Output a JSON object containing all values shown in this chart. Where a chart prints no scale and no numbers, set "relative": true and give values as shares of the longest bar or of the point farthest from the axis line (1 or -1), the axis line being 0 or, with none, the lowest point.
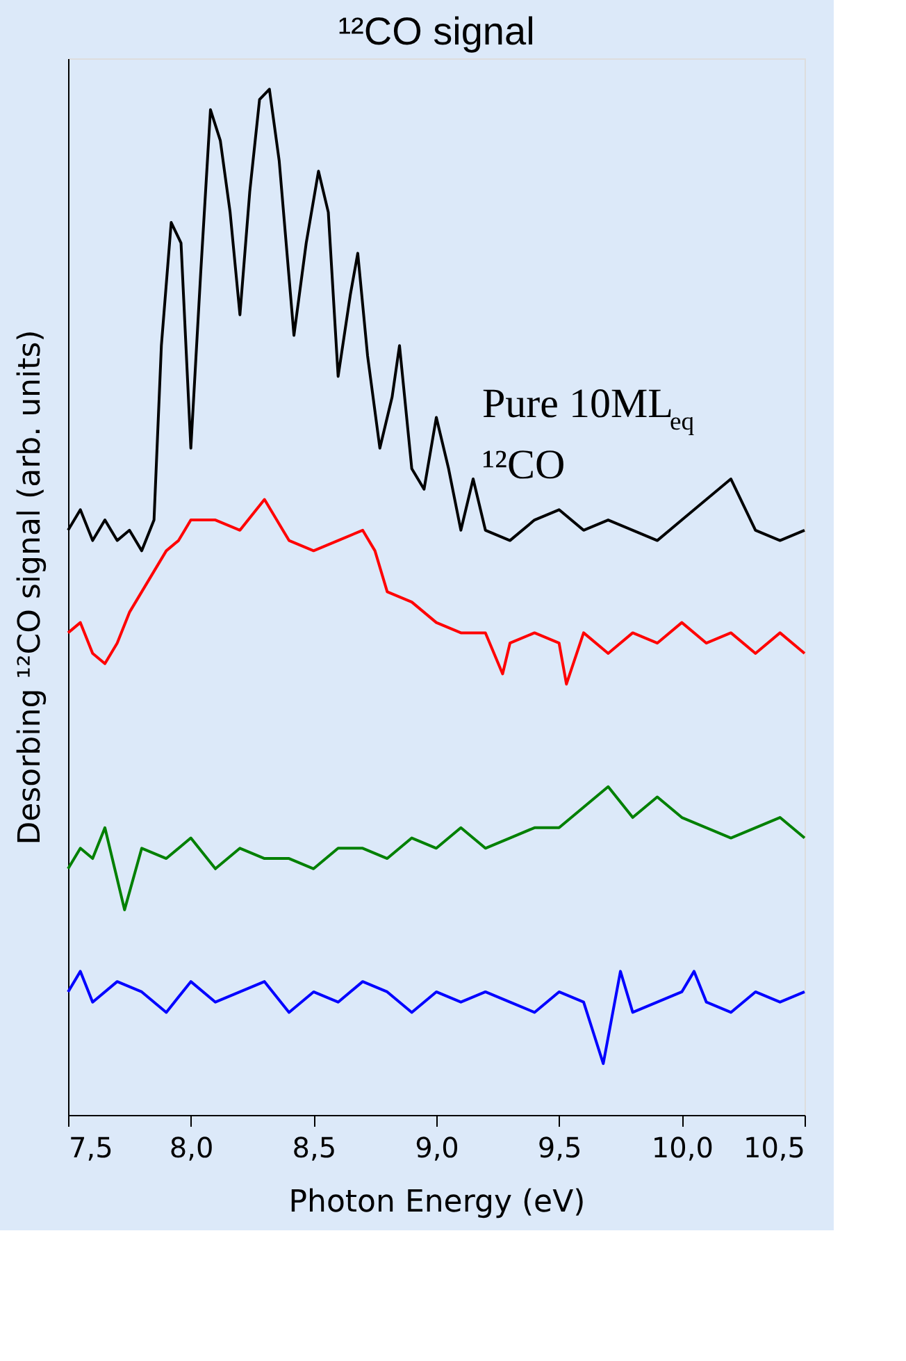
{
  "chart_data": {
    "type": "line",
    "title": "¹²CO signal",
    "xlabel": "Photon Energy (eV)",
    "ylabel": "Desorbing ¹²CO signal (arb. units)",
    "relative": true,
    "tick_labels": "x",
    "grid": false,
    "legend": false,
    "marker": "none",
    "line_style": "solid",
    "annotations": [
      "Pure 10ML$_{eq}$",
      "¹²CO"
    ],
    "xlim": [
      7.5,
      10.5
    ],
    "xticks": [
      {
        "value": 7.5,
        "label": "7,5"
      },
      {
        "value": 8.0,
        "label": "8,0"
      },
      {
        "value": 8.5,
        "label": "8,5"
      },
      {
        "value": 9.0,
        "label": "9,0"
      },
      {
        "value": 9.5,
        "label": "9,5"
      },
      {
        "value": 10.0,
        "label": "10,0"
      },
      {
        "value": 10.5,
        "label": "10,5"
      }
    ],
    "series": [
      {
        "color": "#000000",
        "x": [
          7.5,
          7.55,
          7.6,
          7.65,
          7.7,
          7.75,
          7.8,
          7.85,
          7.88,
          7.92,
          7.96,
          8.0,
          8.04,
          8.08,
          8.12,
          8.16,
          8.2,
          8.24,
          8.28,
          8.32,
          8.36,
          8.42,
          8.47,
          8.52,
          8.56,
          8.6,
          8.65,
          8.68,
          8.72,
          8.77,
          8.82,
          8.85,
          8.9,
          8.95,
          9.0,
          9.05,
          9.1,
          9.15,
          9.2,
          9.3,
          9.4,
          9.5,
          9.6,
          9.7,
          9.8,
          9.9,
          10.0,
          10.1,
          10.2,
          10.3,
          10.4,
          10.5
        ],
        "values": [
          0.57,
          0.59,
          0.56,
          0.58,
          0.56,
          0.57,
          0.55,
          0.58,
          0.75,
          0.87,
          0.85,
          0.65,
          0.82,
          0.98,
          0.95,
          0.88,
          0.78,
          0.9,
          0.99,
          1.0,
          0.93,
          0.76,
          0.85,
          0.92,
          0.88,
          0.72,
          0.8,
          0.84,
          0.74,
          0.65,
          0.7,
          0.75,
          0.63,
          0.61,
          0.68,
          0.63,
          0.57,
          0.62,
          0.57,
          0.56,
          0.58,
          0.59,
          0.57,
          0.58,
          0.57,
          0.56,
          0.58,
          0.6,
          0.62,
          0.57,
          0.56,
          0.57
        ]
      },
      {
        "color": "#ff0000",
        "x": [
          7.5,
          7.55,
          7.6,
          7.65,
          7.7,
          7.75,
          7.8,
          7.85,
          7.9,
          7.95,
          8.0,
          8.1,
          8.2,
          8.3,
          8.35,
          8.4,
          8.5,
          8.6,
          8.7,
          8.75,
          8.8,
          8.9,
          9.0,
          9.1,
          9.2,
          9.27,
          9.3,
          9.4,
          9.5,
          9.53,
          9.6,
          9.7,
          9.8,
          9.9,
          10.0,
          10.1,
          10.2,
          10.3,
          10.4,
          10.5
        ],
        "values": [
          0.47,
          0.48,
          0.45,
          0.44,
          0.46,
          0.49,
          0.51,
          0.53,
          0.55,
          0.56,
          0.58,
          0.58,
          0.57,
          0.6,
          0.58,
          0.56,
          0.55,
          0.56,
          0.57,
          0.55,
          0.51,
          0.5,
          0.48,
          0.47,
          0.47,
          0.43,
          0.46,
          0.47,
          0.46,
          0.42,
          0.47,
          0.45,
          0.47,
          0.46,
          0.48,
          0.46,
          0.47,
          0.45,
          0.47,
          0.45
        ]
      },
      {
        "color": "#008000",
        "x": [
          7.5,
          7.55,
          7.6,
          7.65,
          7.7,
          7.73,
          7.8,
          7.9,
          8.0,
          8.1,
          8.2,
          8.3,
          8.4,
          8.5,
          8.6,
          8.7,
          8.8,
          8.9,
          9.0,
          9.1,
          9.2,
          9.3,
          9.4,
          9.5,
          9.6,
          9.7,
          9.8,
          9.9,
          10.0,
          10.1,
          10.2,
          10.3,
          10.4,
          10.5
        ],
        "values": [
          0.24,
          0.26,
          0.25,
          0.28,
          0.23,
          0.2,
          0.26,
          0.25,
          0.27,
          0.24,
          0.26,
          0.25,
          0.25,
          0.24,
          0.26,
          0.26,
          0.25,
          0.27,
          0.26,
          0.28,
          0.26,
          0.27,
          0.28,
          0.28,
          0.3,
          0.32,
          0.29,
          0.31,
          0.29,
          0.28,
          0.27,
          0.28,
          0.29,
          0.27
        ]
      },
      {
        "color": "#0000ff",
        "x": [
          7.5,
          7.55,
          7.6,
          7.7,
          7.8,
          7.9,
          8.0,
          8.1,
          8.2,
          8.3,
          8.4,
          8.5,
          8.6,
          8.7,
          8.8,
          8.9,
          9.0,
          9.1,
          9.2,
          9.3,
          9.4,
          9.5,
          9.6,
          9.68,
          9.75,
          9.8,
          9.9,
          10.0,
          10.05,
          10.1,
          10.2,
          10.3,
          10.4,
          10.5
        ],
        "values": [
          0.12,
          0.14,
          0.11,
          0.13,
          0.12,
          0.1,
          0.13,
          0.11,
          0.12,
          0.13,
          0.1,
          0.12,
          0.11,
          0.13,
          0.12,
          0.1,
          0.12,
          0.11,
          0.12,
          0.11,
          0.1,
          0.12,
          0.11,
          0.05,
          0.14,
          0.1,
          0.11,
          0.12,
          0.14,
          0.11,
          0.1,
          0.12,
          0.11,
          0.12
        ]
      }
    ]
  }
}
